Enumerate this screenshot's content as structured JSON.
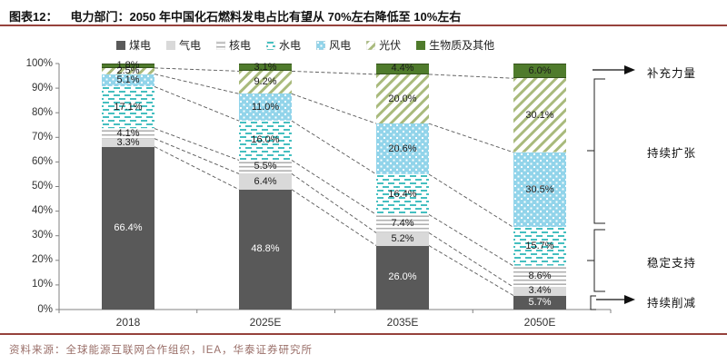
{
  "header": {
    "tag": "图表12：",
    "title": "电力部门：2050 年中国化石燃料发电占比有望从 70%左右降低至 10%左右"
  },
  "footer": {
    "source": "资料来源：全球能源互联网合作组织，IEA，华泰证券研究所"
  },
  "annotations": {
    "supplement": "补充力量",
    "expand": "持续扩张",
    "stable": "稳定支持",
    "reduce": "持续削减"
  },
  "chart_data": {
    "type": "bar",
    "stacked": true,
    "title": "电力部门：2050 年中国化石燃料发电占比有望从 70%左右降低至 10%左右",
    "categories": [
      "2018",
      "2025E",
      "2035E",
      "2050E"
    ],
    "series": [
      {
        "name": "煤电",
        "pattern": "solid",
        "color": "#595959",
        "label_color": "#ffffff",
        "values": [
          66.4,
          48.8,
          26.0,
          5.7
        ]
      },
      {
        "name": "气电",
        "pattern": "solid",
        "color": "#d9d9d9",
        "values": [
          3.3,
          6.4,
          5.2,
          3.4
        ]
      },
      {
        "name": "核电",
        "pattern": "hlines",
        "color": "#b0b0b0",
        "values": [
          4.1,
          5.5,
          7.4,
          8.6
        ]
      },
      {
        "name": "水电",
        "pattern": "dashes",
        "color": "#45bfc0",
        "values": [
          17.1,
          16.0,
          16.4,
          15.7
        ]
      },
      {
        "name": "风电",
        "pattern": "dots",
        "color": "#92d4ea",
        "values": [
          5.1,
          11.0,
          20.6,
          30.5
        ]
      },
      {
        "name": "光伏",
        "pattern": "diag",
        "color": "#a9ba7c",
        "values": [
          2.5,
          9.2,
          20.0,
          30.1
        ]
      },
      {
        "name": "生物质及其他",
        "pattern": "solid",
        "color": "#4f7b2c",
        "border": "#33511b",
        "values": [
          1.8,
          3.1,
          4.4,
          6.0
        ]
      }
    ],
    "ylim": [
      0,
      100
    ],
    "ytick_step": 10,
    "ytick_suffix": "%",
    "value_suffix": "%",
    "grid": false,
    "legend_position": "top",
    "connectors": "dashed lines join stacked-segment boundaries between adjacent bars"
  }
}
